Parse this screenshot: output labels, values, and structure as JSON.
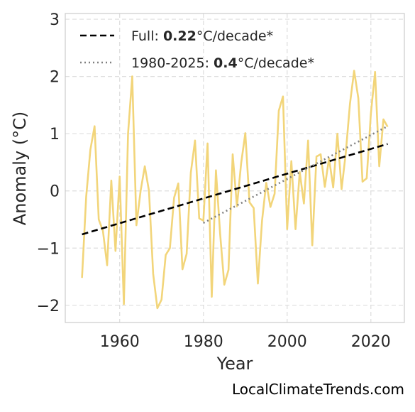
{
  "credit": "LocalClimateTrends.com",
  "colors": {
    "series": "#f2d57a",
    "trend_full": "#000000",
    "trend_recent": "#808080",
    "grid": "#dddddd",
    "frame": "#cccccc"
  },
  "chart_data": {
    "type": "line",
    "xlabel": "Year",
    "ylabel": "Anomaly (°C)",
    "xlim": [
      1947,
      2028
    ],
    "ylim": [
      -2.3,
      3.1
    ],
    "xticks": [
      1960,
      1980,
      2000,
      2020
    ],
    "yticks": [
      -2,
      -1,
      0,
      1,
      2,
      3
    ],
    "ytick_labels": [
      "−2",
      "−1",
      "0",
      "1",
      "2",
      "3"
    ],
    "grid": true,
    "legend_position": "top-left",
    "series": [
      {
        "x": [
          1951,
          1952,
          1953,
          1954,
          1955,
          1956,
          1957,
          1958,
          1959,
          1960,
          1961,
          1962,
          1963,
          1964,
          1965,
          1966,
          1967,
          1968,
          1969,
          1970,
          1971,
          1972,
          1973,
          1974,
          1975,
          1976,
          1977,
          1978,
          1979,
          1980,
          1981,
          1982,
          1983,
          1984,
          1985,
          1986,
          1987,
          1988,
          1989,
          1990,
          1991,
          1992,
          1993,
          1994,
          1995,
          1996,
          1997,
          1998,
          1999,
          2000,
          2001,
          2002,
          2003,
          2004,
          2005,
          2006,
          2007,
          2008,
          2009,
          2010,
          2011,
          2012,
          2013,
          2014,
          2015,
          2016,
          2017,
          2018,
          2019,
          2020,
          2021,
          2022,
          2023,
          2024
        ],
        "y": [
          -1.52,
          -0.1,
          0.72,
          1.13,
          -0.5,
          -0.7,
          -1.3,
          0.18,
          -1.05,
          0.25,
          -1.98,
          1.0,
          2.0,
          -0.6,
          0.0,
          0.43,
          0.0,
          -1.45,
          -2.05,
          -1.9,
          -1.12,
          -1.0,
          -0.12,
          0.13,
          -1.37,
          -1.1,
          0.32,
          0.88,
          -0.48,
          -0.52,
          0.83,
          -1.85,
          0.36,
          -0.75,
          -1.64,
          -1.38,
          0.64,
          -0.27,
          0.48,
          1.01,
          -0.2,
          -0.3,
          -1.62,
          -0.52,
          0.14,
          -0.28,
          -0.05,
          1.4,
          1.65,
          -0.67,
          0.52,
          -0.67,
          0.33,
          -0.22,
          0.88,
          -0.95,
          0.6,
          0.64,
          0.07,
          0.57,
          0.06,
          1.0,
          0.03,
          0.66,
          1.52,
          2.1,
          1.62,
          0.16,
          0.22,
          1.35,
          2.08,
          0.43,
          1.25,
          1.12
        ]
      }
    ],
    "trend_lines": [
      {
        "label_prefix": "Full: ",
        "rate": "0.22",
        "label_suffix": "°C/decade*",
        "x": [
          1951,
          2024
        ],
        "y": [
          -0.76,
          0.82
        ],
        "style": "dashed"
      },
      {
        "label_prefix": "1980-2025: ",
        "rate": "0.4",
        "label_suffix": "°C/decade*",
        "x": [
          1980,
          2024
        ],
        "y": [
          -0.56,
          1.13
        ],
        "style": "dotted"
      }
    ]
  }
}
